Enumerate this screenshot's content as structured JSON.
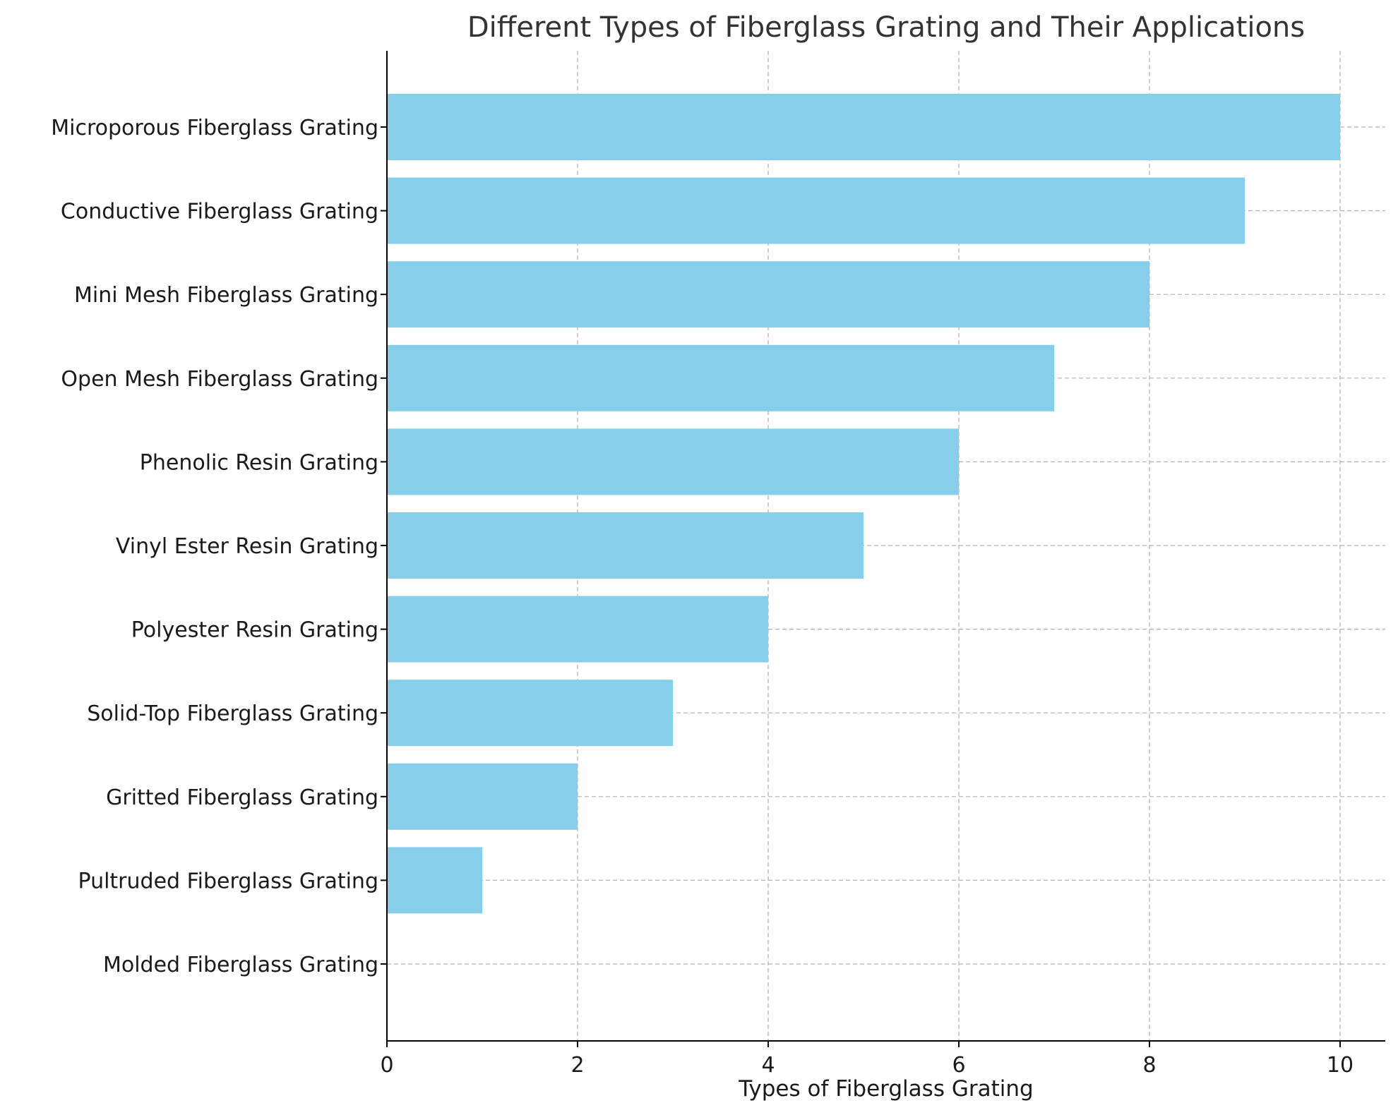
{
  "chart_data": {
    "type": "bar",
    "orientation": "horizontal",
    "title": "Different Types of Fiberglass Grating and Their Applications",
    "xlabel": "Types of Fiberglass Grating",
    "ylabel": "",
    "categories": [
      "Molded Fiberglass Grating",
      "Pultruded Fiberglass Grating",
      "Gritted Fiberglass Grating",
      "Solid-Top Fiberglass Grating",
      "Polyester Resin Grating",
      "Vinyl Ester Resin Grating",
      "Phenolic Resin Grating",
      "Open Mesh Fiberglass Grating",
      "Mini Mesh Fiberglass Grating",
      "Conductive Fiberglass Grating",
      "Microporous Fiberglass Grating"
    ],
    "values": [
      0,
      1,
      2,
      3,
      4,
      5,
      6,
      7,
      8,
      9,
      10
    ],
    "xlim": [
      0,
      10.5
    ],
    "xticks": [
      "0",
      "2",
      "4",
      "6",
      "8",
      "10"
    ],
    "grid": true,
    "colors": {
      "bar": "#87ceeb",
      "grid": "#b0b0b0",
      "axis": "#000000",
      "title": "#333333"
    }
  }
}
